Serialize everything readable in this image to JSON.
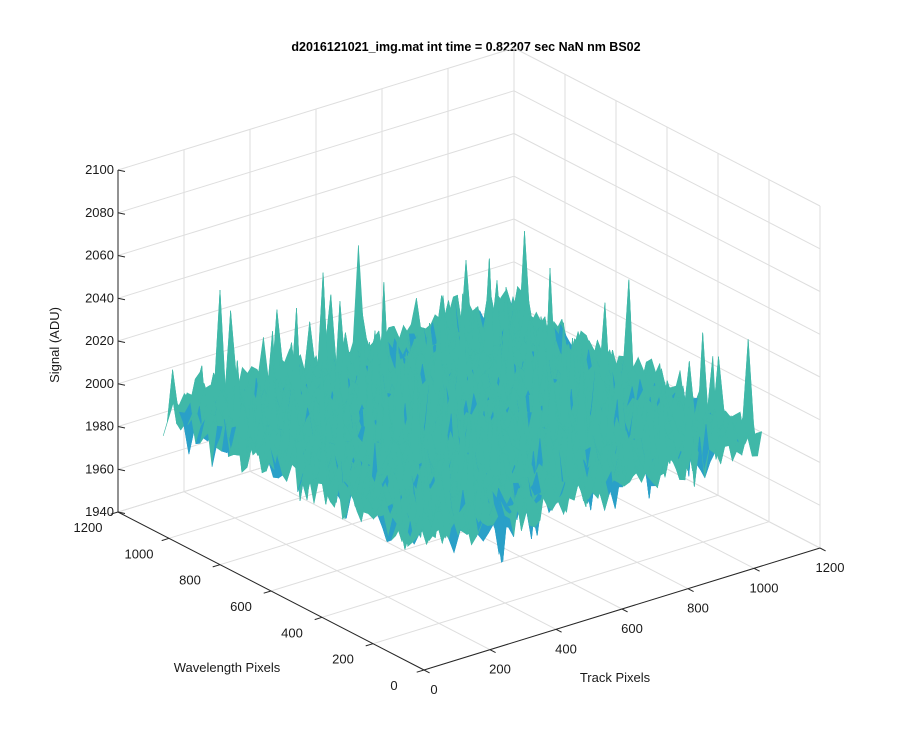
{
  "chart_data": {
    "type": "surface",
    "title": "d2016121021_img.mat int time = 0.82207 sec  NaN nm BS02",
    "xlabel": "Track Pixels",
    "ylabel": "Wavelength Pixels",
    "zlabel": "Signal (ADU)",
    "xlim": [
      0,
      1200
    ],
    "ylim": [
      0,
      1200
    ],
    "zlim": [
      1940,
      2100
    ],
    "xticks": [
      "0",
      "200",
      "400",
      "600",
      "800",
      "1000",
      "1200"
    ],
    "yticks": [
      "0",
      "200",
      "400",
      "600",
      "800",
      "1000",
      "1200"
    ],
    "zticks": [
      "1940",
      "1960",
      "1980",
      "2000",
      "2020",
      "2040",
      "2060",
      "2080",
      "2100"
    ],
    "x_range": [
      1,
      1024
    ],
    "y_range": [
      1,
      1024
    ],
    "mean_signal": 2000,
    "noise_range": [
      1950,
      2090
    ],
    "grid": true,
    "colormap": [
      "#1a70c8",
      "#2aa0c8",
      "#40b8a8",
      "#7cc27a",
      "#c8c050",
      "#e8c040"
    ]
  }
}
